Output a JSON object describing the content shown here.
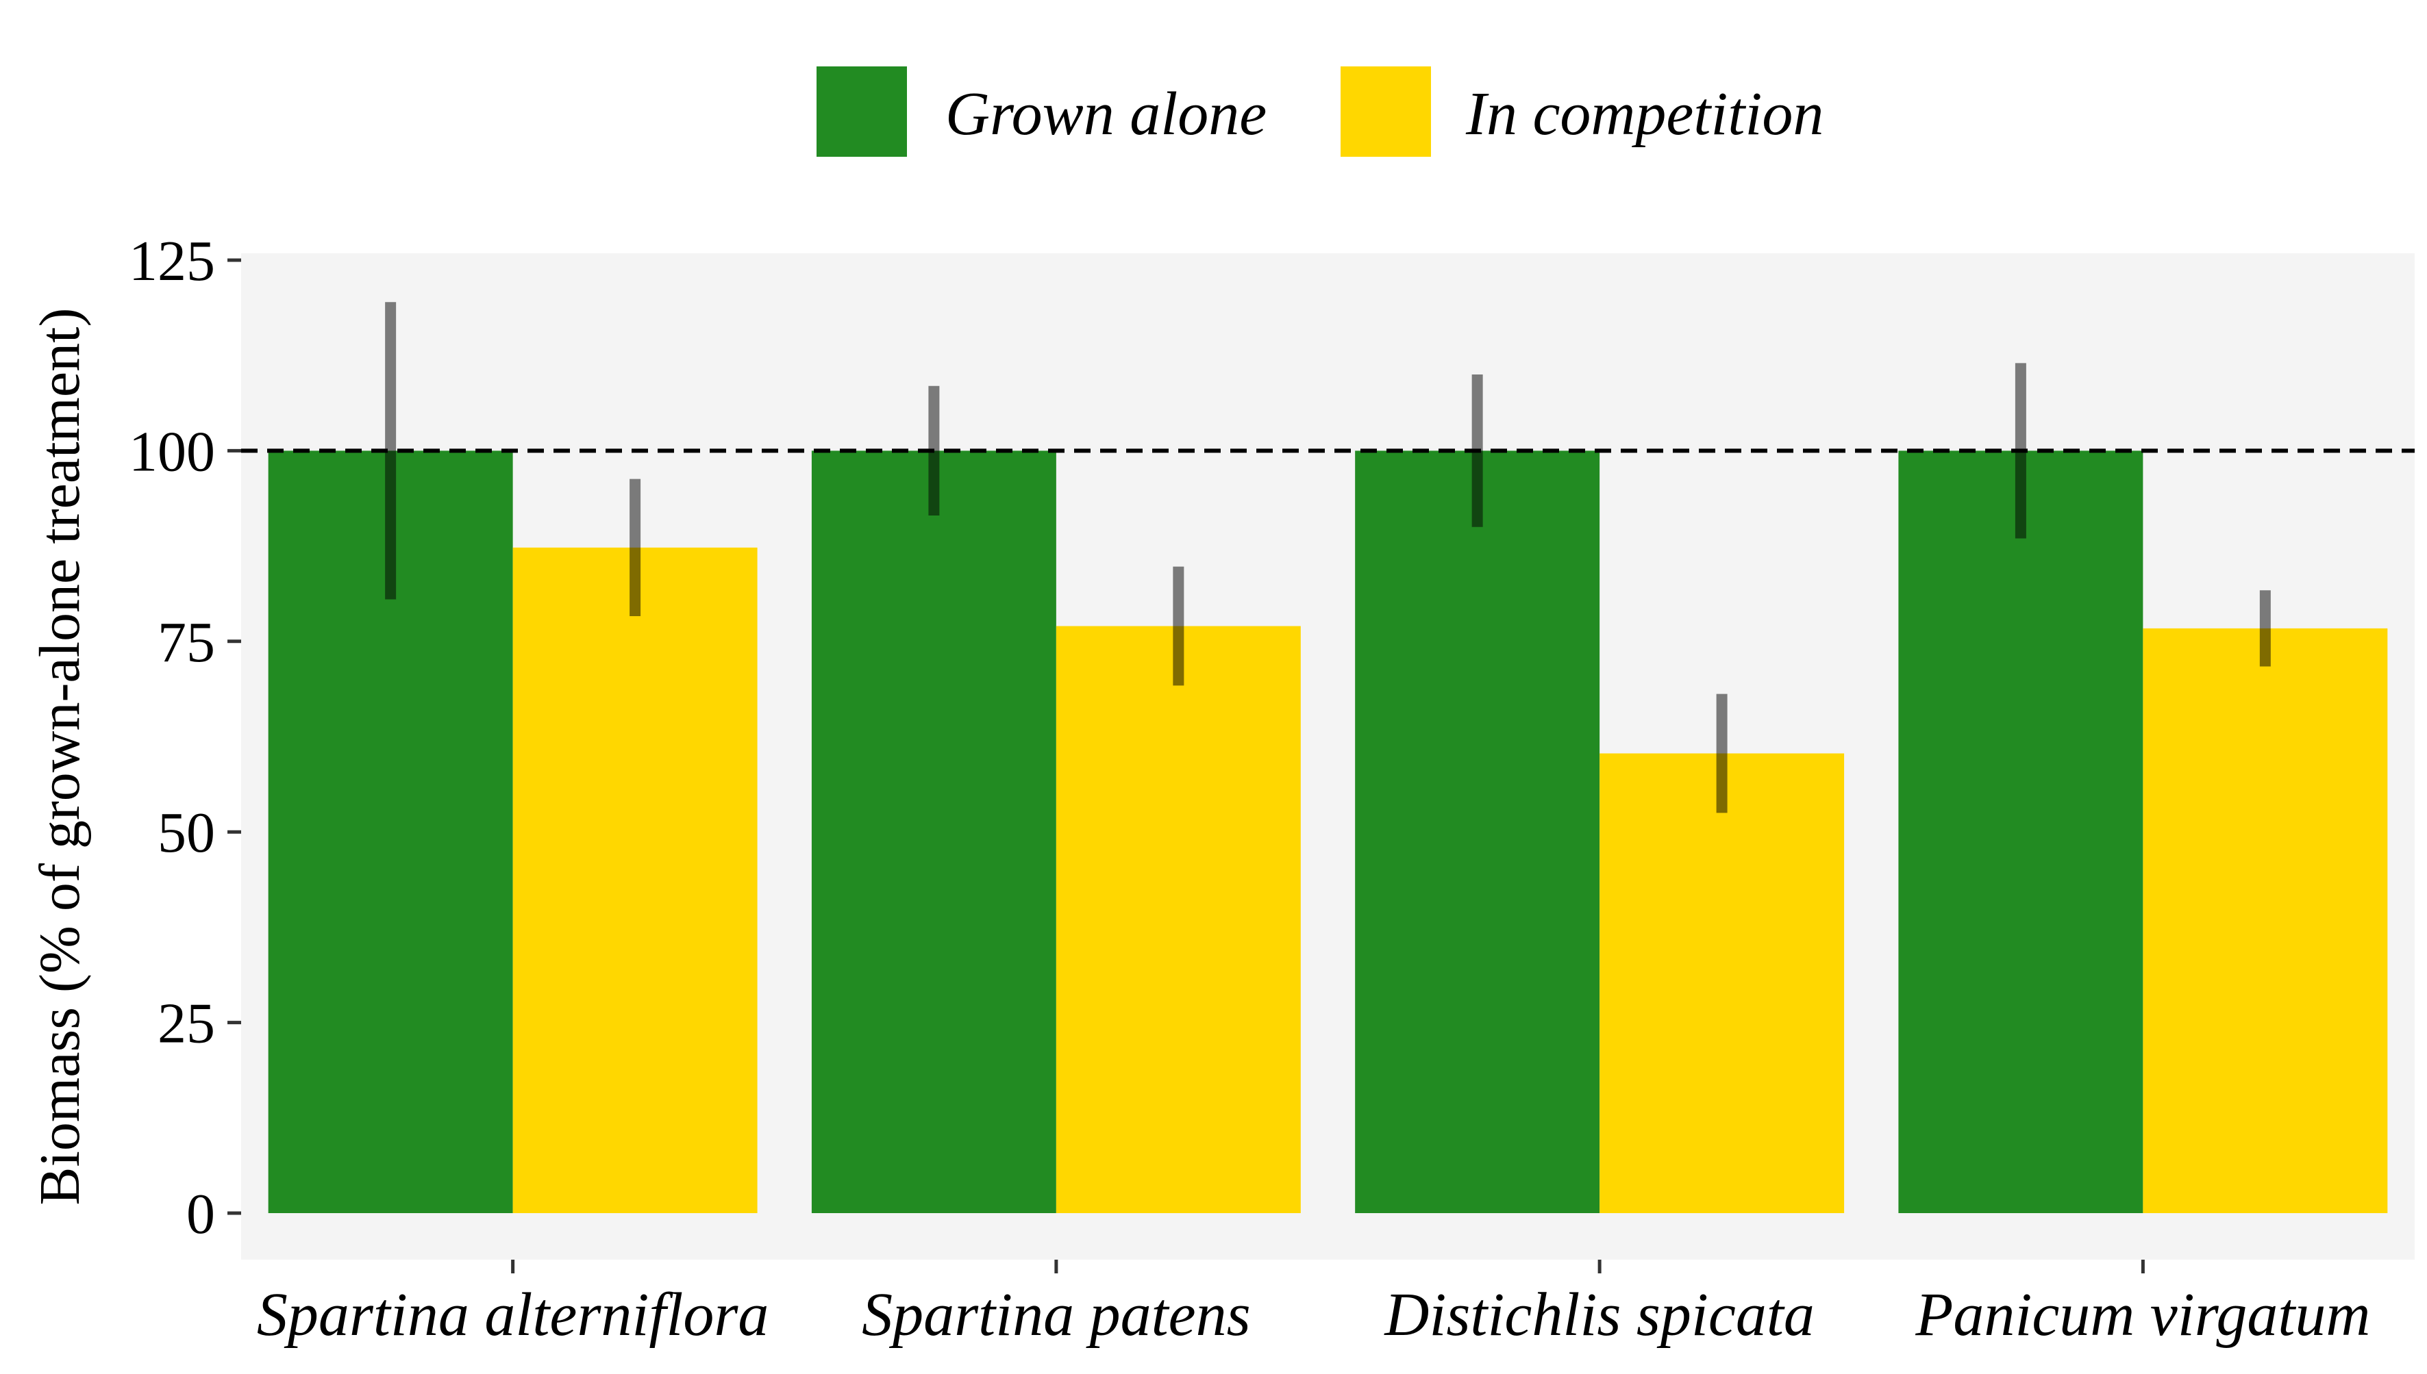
{
  "chart_data": {
    "type": "bar",
    "title": "",
    "xlabel": "",
    "ylabel": "Biomass (% of grown-alone treatment)",
    "ylim": [
      -5,
      128
    ],
    "yticks": [
      0,
      25,
      50,
      75,
      100,
      125
    ],
    "categories": [
      "Spartina alterniflora",
      "Spartina patens",
      "Distichlis spicata",
      "Panicum virgatum"
    ],
    "series": [
      {
        "name": "Grown alone",
        "color": "#228B22",
        "values": [
          100,
          100,
          100,
          100
        ],
        "error_low": [
          80.5,
          91.5,
          90,
          88.5
        ],
        "error_high": [
          119.5,
          108.5,
          110,
          111.5
        ]
      },
      {
        "name": "In competition",
        "color": "#FFD700",
        "values": [
          87.3,
          77,
          60.3,
          76.7
        ],
        "error_low": [
          78.3,
          69.2,
          52.5,
          71.7
        ],
        "error_high": [
          96.3,
          84.8,
          68.1,
          81.7
        ]
      }
    ],
    "reference_line": {
      "y": 100,
      "style": "dashed",
      "color": "#000000"
    },
    "legend": {
      "position": "top"
    },
    "grid": false,
    "panel_color": "#F4F4F4"
  }
}
